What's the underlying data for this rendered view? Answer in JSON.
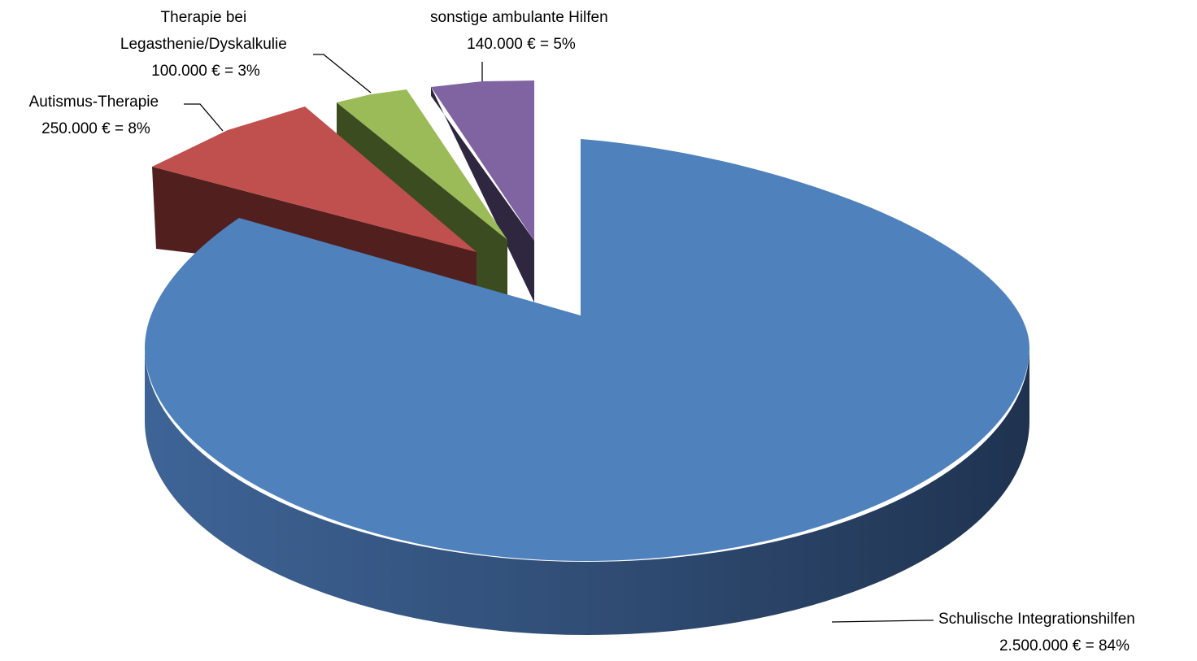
{
  "chart_data": {
    "type": "pie",
    "style": "3d-exploded",
    "title": "",
    "slices": [
      {
        "name": "Schulische Integrationshilfen",
        "value": 2500000,
        "percent": 84,
        "value_label": "2.500.000 € = 84%",
        "label_lines": [
          "Schulische Integrationshilfen"
        ],
        "color": "#4f81bd"
      },
      {
        "name": "Autismus-Therapie",
        "value": 250000,
        "percent": 8,
        "value_label": "250.000 € = 8%",
        "label_lines": [
          "Autismus-Therapie"
        ],
        "color": "#c0504d"
      },
      {
        "name": "Therapie bei Legasthenie/Dyskalkulie",
        "value": 100000,
        "percent": 3,
        "value_label": "100.000 € = 3%",
        "label_lines": [
          "Therapie bei",
          "Legasthenie/Dyskalkulie"
        ],
        "color": "#9bbb59"
      },
      {
        "name": "sonstige ambulante Hilfen",
        "value": 140000,
        "percent": 5,
        "value_label": "140.000 € = 5%",
        "label_lines": [
          "sonstige ambulante Hilfen"
        ],
        "color": "#8064a2"
      }
    ]
  }
}
